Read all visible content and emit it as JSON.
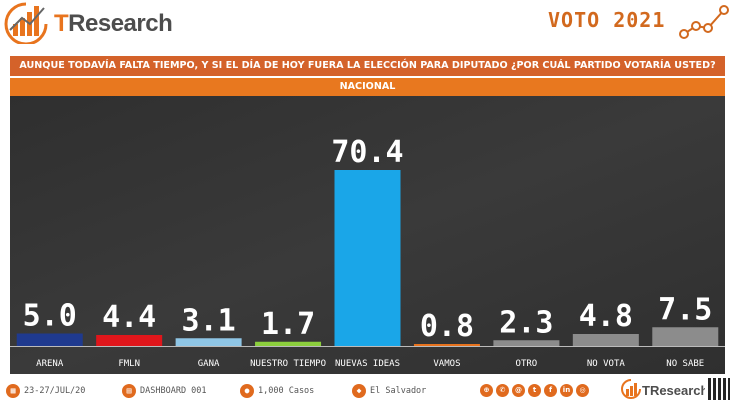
{
  "header": {
    "brand": "TResearch",
    "brand_first": "T",
    "brand_rest": "Research",
    "campaign": "VOTO 2021"
  },
  "question": "AUNQUE TODAVÍA FALTA TIEMPO, Y SI EL DÍA DE HOY FUERA LA ELECCIÓN  PARA DIPUTADO ¿POR CUÁL PARTIDO VOTARÍA USTED?",
  "subtitle": "NACIONAL",
  "chart_data": {
    "type": "bar",
    "categories": [
      "ARENA",
      "FMLN",
      "GANA",
      "NUESTRO TIEMPO",
      "NUEVAS IDEAS",
      "VAMOS",
      "OTRO",
      "NO VOTA",
      "NO SABE"
    ],
    "values": [
      5.0,
      4.4,
      3.1,
      1.7,
      70.4,
      0.8,
      2.3,
      4.8,
      7.5
    ],
    "value_labels": [
      "5.0",
      "4.4",
      "3.1",
      "1.7",
      "70.4",
      "0.8",
      "2.3",
      "4.8",
      "7.5"
    ],
    "colors": [
      "#1f3a8f",
      "#e0161b",
      "#8fc6e6",
      "#8ccf3d",
      "#1aa6e8",
      "#e8731e",
      "#8c8c8c",
      "#8c8c8c",
      "#8c8c8c"
    ],
    "ylim": [
      0,
      80
    ],
    "background": "#333333",
    "label_color": "#ffffff"
  },
  "footer": {
    "date": "23-27/JUL/20",
    "dashboard": "DASHBOARD 001",
    "cases": "1,000 Casos",
    "location": "El Salvador",
    "social_icons": [
      "web-icon",
      "whatsapp-icon",
      "email-icon",
      "twitter-icon",
      "facebook-icon",
      "linkedin-icon",
      "instagram-icon"
    ],
    "brand": "TResearch"
  },
  "colors": {
    "accent": "#e8781f",
    "accent_dark": "#d4622a",
    "brand_text": "#4d4d4d"
  }
}
